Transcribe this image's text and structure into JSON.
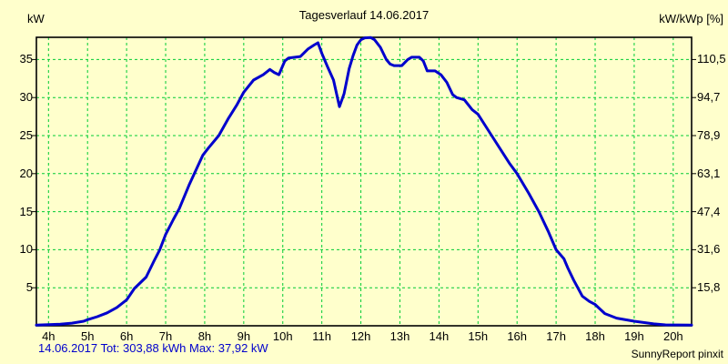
{
  "chart": {
    "title": "Tagesverlauf 14.06.2017",
    "left_axis_title": "kW",
    "right_axis_title": "kW/kWp [%]",
    "footer": "14.06.2017 Tot: 303,88 kWh Max: 37,92 kW",
    "brand": "SunnyReport pinxit"
  },
  "chart_data": {
    "type": "line",
    "title": "Tagesverlauf 14.06.2017",
    "ylabel_left": "kW",
    "ylabel_right": "kW/kWp [%]",
    "x_tick_hours": [
      4,
      5,
      6,
      7,
      8,
      9,
      10,
      11,
      12,
      13,
      14,
      15,
      16,
      17,
      18,
      19,
      20
    ],
    "x_tick_labels": [
      "4h",
      "5h",
      "6h",
      "7h",
      "8h",
      "9h",
      "10h",
      "11h",
      "12h",
      "13h",
      "14h",
      "15h",
      "16h",
      "17h",
      "18h",
      "19h",
      "20h"
    ],
    "y_left_ticks": [
      5,
      10,
      15,
      20,
      25,
      30,
      35
    ],
    "y_right_tick_labels": [
      "15,8",
      "31,6",
      "47,4",
      "63,1",
      "78,9",
      "94,7",
      "110,5"
    ],
    "x_range": [
      3.69,
      20.47
    ],
    "y_range": [
      0,
      37.92
    ],
    "grid": true,
    "legend": "none",
    "stats": {
      "date": "14.06.2017",
      "total_kwh": "303,88",
      "max_kw": "37,92"
    },
    "series": [
      {
        "name": "power-kw",
        "points": [
          [
            3.69,
            0.1
          ],
          [
            4.0,
            0.15
          ],
          [
            4.3,
            0.2
          ],
          [
            4.6,
            0.35
          ],
          [
            4.9,
            0.6
          ],
          [
            5.0,
            0.8
          ],
          [
            5.25,
            1.2
          ],
          [
            5.5,
            1.7
          ],
          [
            5.75,
            2.4
          ],
          [
            6.0,
            3.4
          ],
          [
            6.2,
            4.9
          ],
          [
            6.5,
            6.4
          ],
          [
            6.7,
            8.5
          ],
          [
            6.85,
            10.0
          ],
          [
            7.0,
            12.0
          ],
          [
            7.2,
            14.0
          ],
          [
            7.35,
            15.4
          ],
          [
            7.6,
            18.5
          ],
          [
            7.95,
            22.4
          ],
          [
            8.1,
            23.4
          ],
          [
            8.36,
            25.0
          ],
          [
            8.6,
            27.2
          ],
          [
            8.82,
            29.0
          ],
          [
            9.0,
            30.7
          ],
          [
            9.25,
            32.3
          ],
          [
            9.5,
            33.0
          ],
          [
            9.67,
            33.7
          ],
          [
            9.78,
            33.3
          ],
          [
            9.9,
            33.0
          ],
          [
            10.05,
            34.8
          ],
          [
            10.15,
            35.2
          ],
          [
            10.45,
            35.4
          ],
          [
            10.65,
            36.4
          ],
          [
            10.8,
            36.9
          ],
          [
            10.9,
            37.2
          ],
          [
            11.0,
            35.8
          ],
          [
            11.15,
            34.0
          ],
          [
            11.3,
            32.3
          ],
          [
            11.45,
            28.8
          ],
          [
            11.57,
            30.5
          ],
          [
            11.7,
            33.8
          ],
          [
            11.8,
            35.5
          ],
          [
            11.9,
            36.9
          ],
          [
            12.0,
            37.6
          ],
          [
            12.1,
            37.85
          ],
          [
            12.25,
            37.9
          ],
          [
            12.35,
            37.6
          ],
          [
            12.5,
            36.6
          ],
          [
            12.65,
            35.0
          ],
          [
            12.75,
            34.4
          ],
          [
            12.85,
            34.2
          ],
          [
            13.05,
            34.2
          ],
          [
            13.2,
            35.0
          ],
          [
            13.3,
            35.3
          ],
          [
            13.5,
            35.3
          ],
          [
            13.6,
            34.8
          ],
          [
            13.7,
            33.5
          ],
          [
            13.9,
            33.5
          ],
          [
            14.05,
            33.0
          ],
          [
            14.2,
            32.0
          ],
          [
            14.35,
            30.4
          ],
          [
            14.45,
            30.0
          ],
          [
            14.65,
            29.7
          ],
          [
            14.85,
            28.4
          ],
          [
            15.0,
            27.8
          ],
          [
            15.2,
            26.2
          ],
          [
            15.35,
            25.0
          ],
          [
            15.6,
            23.0
          ],
          [
            15.8,
            21.4
          ],
          [
            16.0,
            20.0
          ],
          [
            16.3,
            17.4
          ],
          [
            16.56,
            15.0
          ],
          [
            16.8,
            12.4
          ],
          [
            17.0,
            10.0
          ],
          [
            17.2,
            8.8
          ],
          [
            17.3,
            7.6
          ],
          [
            17.45,
            6.0
          ],
          [
            17.67,
            3.9
          ],
          [
            17.85,
            3.2
          ],
          [
            18.0,
            2.8
          ],
          [
            18.25,
            1.6
          ],
          [
            18.55,
            1.0
          ],
          [
            19.0,
            0.6
          ],
          [
            19.5,
            0.25
          ],
          [
            19.8,
            0.12
          ],
          [
            20.47,
            0.1
          ]
        ]
      }
    ],
    "colors": {
      "background": "#FFFFCC",
      "grid": "#00CC33",
      "curve": "#0000CC",
      "border": "#000000",
      "footer_text": "#0000CC",
      "text": "#000000"
    }
  }
}
